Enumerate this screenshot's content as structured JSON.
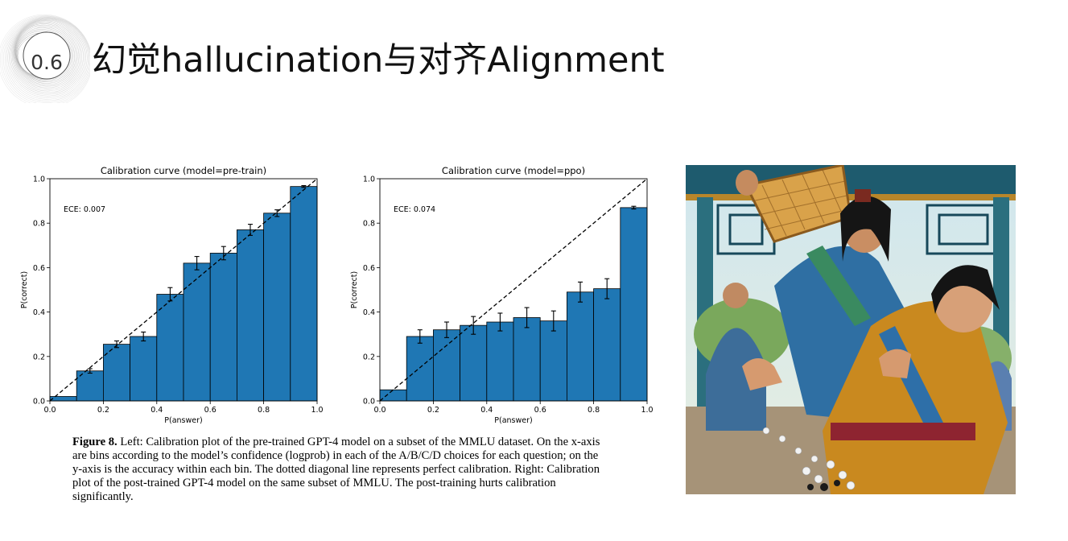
{
  "slide": {
    "number": "0.6",
    "title": "幻觉hallucination与对齐Alignment"
  },
  "chart_data": [
    {
      "type": "bar",
      "title": "Calibration curve (model=pre-train)",
      "xlabel": "P(answer)",
      "ylabel": "P(correct)",
      "annotation": "ECE: 0.007",
      "xlim": [
        0.0,
        1.0
      ],
      "ylim": [
        0.0,
        1.0
      ],
      "xticks": [
        "0.0",
        "0.2",
        "0.4",
        "0.6",
        "0.8",
        "1.0"
      ],
      "yticks": [
        "0.0",
        "0.2",
        "0.4",
        "0.6",
        "0.8",
        "1.0"
      ],
      "bins": [
        [
          0.0,
          0.1
        ],
        [
          0.1,
          0.2
        ],
        [
          0.2,
          0.3
        ],
        [
          0.3,
          0.4
        ],
        [
          0.4,
          0.5
        ],
        [
          0.5,
          0.6
        ],
        [
          0.6,
          0.7
        ],
        [
          0.7,
          0.8
        ],
        [
          0.8,
          0.9
        ],
        [
          0.9,
          1.0
        ]
      ],
      "values": [
        0.02,
        0.135,
        0.255,
        0.29,
        0.48,
        0.62,
        0.665,
        0.77,
        0.845,
        0.965
      ],
      "errors": [
        0.0,
        0.01,
        0.015,
        0.02,
        0.03,
        0.03,
        0.03,
        0.025,
        0.015,
        0.004
      ],
      "reference_line": "diagonal-dashed",
      "bar_color": "#1f77b4"
    },
    {
      "type": "bar",
      "title": "Calibration curve (model=ppo)",
      "xlabel": "P(answer)",
      "ylabel": "P(correct)",
      "annotation": "ECE: 0.074",
      "xlim": [
        0.0,
        1.0
      ],
      "ylim": [
        0.0,
        1.0
      ],
      "xticks": [
        "0.0",
        "0.2",
        "0.4",
        "0.6",
        "0.8",
        "1.0"
      ],
      "yticks": [
        "0.0",
        "0.2",
        "0.4",
        "0.6",
        "0.8",
        "1.0"
      ],
      "bins": [
        [
          0.0,
          0.1
        ],
        [
          0.1,
          0.2
        ],
        [
          0.2,
          0.3
        ],
        [
          0.3,
          0.4
        ],
        [
          0.4,
          0.5
        ],
        [
          0.5,
          0.6
        ],
        [
          0.6,
          0.7
        ],
        [
          0.7,
          0.8
        ],
        [
          0.8,
          0.9
        ],
        [
          0.9,
          1.0
        ]
      ],
      "values": [
        0.05,
        0.29,
        0.32,
        0.34,
        0.355,
        0.375,
        0.36,
        0.49,
        0.505,
        0.87
      ],
      "errors": [
        0.0,
        0.03,
        0.035,
        0.04,
        0.04,
        0.045,
        0.045,
        0.045,
        0.045,
        0.006
      ],
      "reference_line": "diagonal-dashed",
      "bar_color": "#1f77b4"
    }
  ],
  "caption": {
    "label": "Figure 8.",
    "text": " Left: Calibration plot of the pre-trained GPT-4 model on a subset of the MMLU dataset. On the x-axis are bins according to the model’s confidence (logprob) in each of the A/B/C/D choices for each question; on the y-axis is the accuracy within each bin. The dotted diagonal line represents perfect calibration. Right: Calibration plot of the post-trained GPT-4 model on the same subset of MMLU. The post-training hurts calibration significantly."
  },
  "colors": {
    "bar": "#1f77b4",
    "illustration_robe_blue": "#2f6fa3",
    "illustration_robe_gold": "#c9891f",
    "illustration_sky": "#d7e8ef"
  },
  "icons": [
    "section-badge-swirl-icon",
    "chess-game-illustration"
  ]
}
